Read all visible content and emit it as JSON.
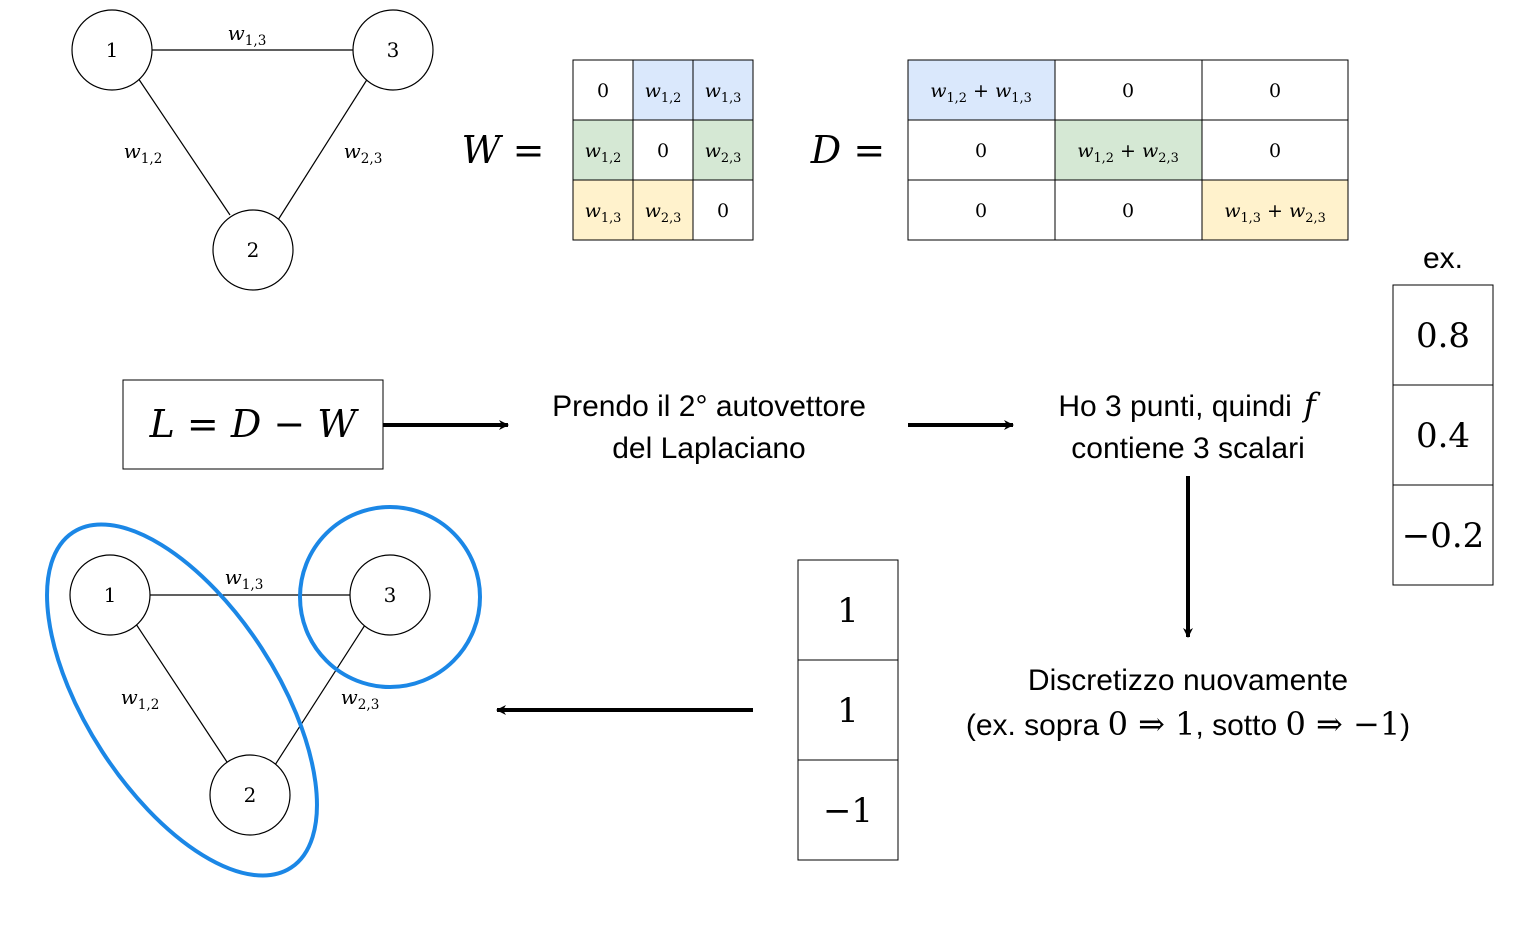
{
  "graph_top": {
    "nodes": [
      {
        "label": "1"
      },
      {
        "label": "3"
      },
      {
        "label": "2"
      }
    ],
    "edges": {
      "e13": "w1,3",
      "e12": "w1,2",
      "e23": "w2,3"
    }
  },
  "matrix_W": {
    "name": "W =",
    "cells": [
      [
        "0",
        "w1,2",
        "w1,3"
      ],
      [
        "w1,2",
        "0",
        "w2,3"
      ],
      [
        "w1,3",
        "w2,3",
        "0"
      ]
    ]
  },
  "matrix_D": {
    "name": "D =",
    "cells": [
      [
        "w1,2 + w1,3",
        "0",
        "0"
      ],
      [
        "0",
        "w1,2 + w2,3",
        "0"
      ],
      [
        "0",
        "0",
        "w1,3 + w2,3"
      ]
    ]
  },
  "colors": {
    "blue": "#dae8fc",
    "green": "#d5e8d4",
    "yellow": "#fff2cc",
    "cluster": "#1b87e6"
  },
  "laplacian_box": "L = D − W",
  "step_eigen": {
    "line1": "Prendo il 2° autovettore",
    "line2": "del Laplaciano"
  },
  "step_points": {
    "line1": "Ho 3 punti, quindi",
    "f": "f",
    "line2": "contiene 3 scalari"
  },
  "example_vector": {
    "label": "ex.",
    "values": [
      "0.8",
      "0.4",
      "−0.2"
    ]
  },
  "discretize": {
    "line1": "Discretizzo nuovamente",
    "line2": {
      "p1": "(ex. sopra ",
      "m1": "0 ⇒ 1",
      ",": ", sotto ",
      "m2": "0 ⇒ −1",
      "p2": ")"
    }
  },
  "discrete_vector": {
    "values": [
      "1",
      "1",
      "−1"
    ]
  },
  "graph_bottom": {
    "nodes": [
      {
        "label": "1"
      },
      {
        "label": "3"
      },
      {
        "label": "2"
      }
    ],
    "edges": {
      "e13": "w1,3",
      "e12": "w1,2",
      "e23": "w2,3"
    }
  }
}
